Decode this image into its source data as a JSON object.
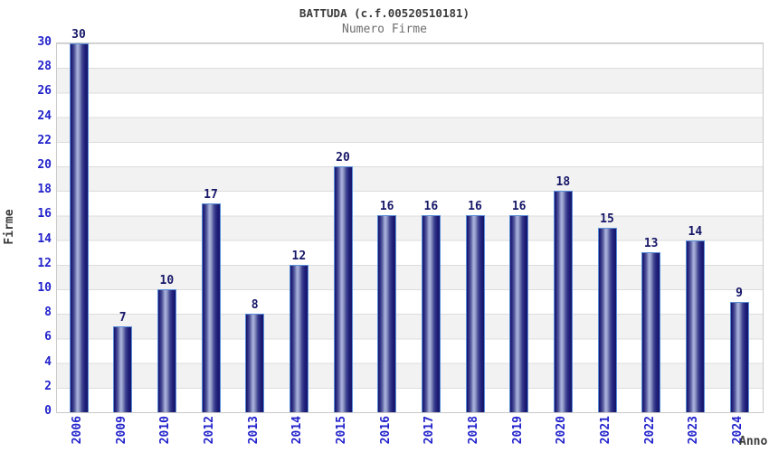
{
  "title": "BATTUDA (c.f.00520510181)",
  "subtitle": "Numero Firme",
  "y_axis_title": "Firme",
  "x_axis_title": "Anno",
  "colors": {
    "tick_label_blue": "#2222cc",
    "value_label_navy": "#171769",
    "title_dark": "#3c3c3c",
    "subtitle_gray": "#6e6e6e",
    "bar_dark": "#15156b",
    "bar_highlight": "#aab2dc",
    "bar_border_light_blue": "#5a8ed8",
    "stripe_gray": "#f2f2f2",
    "gridline": "#dcdcdc",
    "plot_border": "#c8c8c8"
  },
  "chart_data": {
    "type": "bar",
    "title": "BATTUDA (c.f.00520510181)",
    "subtitle": "Numero Firme",
    "xlabel": "Anno",
    "ylabel": "Firme",
    "categories": [
      "2006",
      "2009",
      "2010",
      "2012",
      "2013",
      "2014",
      "2015",
      "2016",
      "2017",
      "2018",
      "2019",
      "2020",
      "2021",
      "2022",
      "2023",
      "2024"
    ],
    "values": [
      30,
      7,
      10,
      17,
      8,
      12,
      20,
      16,
      16,
      16,
      16,
      18,
      15,
      13,
      14,
      9
    ],
    "ylim": [
      0,
      30
    ],
    "ytick_step": 2,
    "yticks": [
      0,
      2,
      4,
      6,
      8,
      10,
      12,
      14,
      16,
      18,
      20,
      22,
      24,
      26,
      28,
      30
    ],
    "grid": "horizontal-stripes",
    "legend": "none",
    "bar_labels_shown": true,
    "x_labels_rotated_degrees": 90
  }
}
